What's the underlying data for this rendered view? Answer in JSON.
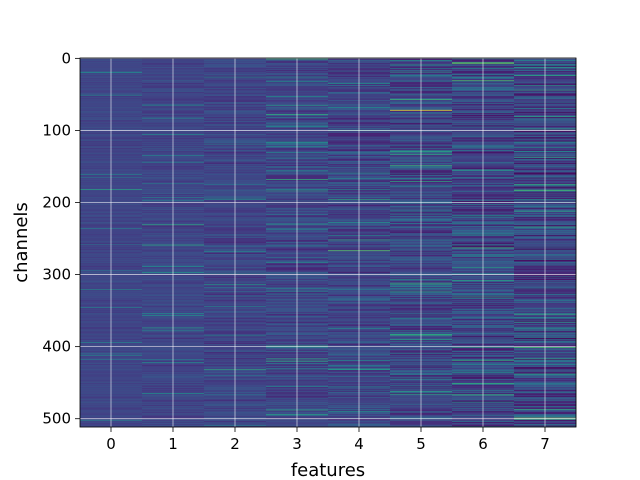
{
  "chart_data": {
    "type": "heatmap",
    "title": "",
    "xlabel": "features",
    "ylabel": "channels",
    "x_ticks": [
      "0",
      "1",
      "2",
      "3",
      "4",
      "5",
      "6",
      "7"
    ],
    "y_ticks": [
      "0",
      "100",
      "200",
      "300",
      "400",
      "500"
    ],
    "xlim": [
      -0.5,
      7.5
    ],
    "ylim": [
      511.5,
      -0.5
    ],
    "n_features": 8,
    "n_channels": 512,
    "colormap": "viridis",
    "grid": true,
    "legend": "none",
    "colors": {
      "low": "#440154",
      "mid": "#3b528b",
      "teal": "#21918c",
      "green": "#5ec962",
      "high": "#fde725",
      "grid": "#ffffff"
    },
    "highlights": [
      {
        "feature": 5,
        "channel": 72,
        "level": 1.0
      },
      {
        "feature": 7,
        "channel": 3,
        "level": 0.6
      },
      {
        "feature": 4,
        "channel": 182,
        "level": 0.55
      },
      {
        "feature": 3,
        "channel": 298,
        "level": 0.5
      },
      {
        "feature": 4,
        "channel": 455,
        "level": 0.5
      },
      {
        "feature": 6,
        "channel": 220,
        "level": 0.55
      },
      {
        "feature": 7,
        "channel": 360,
        "level": 0.55
      },
      {
        "feature": 2,
        "channel": 330,
        "level": 0.45
      }
    ]
  }
}
